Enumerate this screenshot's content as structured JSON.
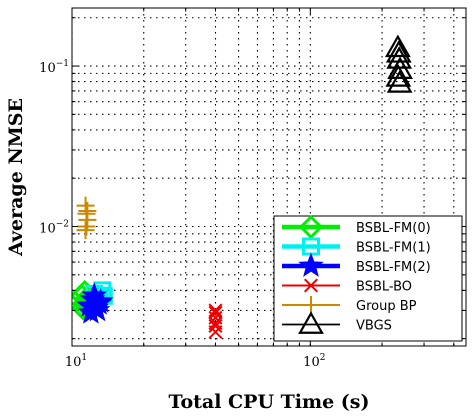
{
  "chart_data": {
    "type": "scatter",
    "title": "",
    "xlabel": "Total CPU Time (s)",
    "ylabel": "Average NMSE",
    "x_scale": "log",
    "y_scale": "log",
    "xlim": [
      10,
      450
    ],
    "ylim": [
      0.0018,
      0.23
    ],
    "grid": true,
    "legend_position": "lower-right",
    "x_ticks": [
      {
        "value": 10,
        "base": "10",
        "exp": "1"
      },
      {
        "value": 100,
        "base": "10",
        "exp": "2"
      }
    ],
    "y_ticks": [
      {
        "value": 0.01,
        "base": "10",
        "exp": "−2"
      },
      {
        "value": 0.1,
        "base": "10",
        "exp": "−1"
      }
    ],
    "series": [
      {
        "name": "BSBL-FM(0)",
        "color": "#00ee00",
        "marker": "diamond",
        "x": [
          11.0,
          11.2,
          11.4,
          11.6,
          11.1,
          11.3,
          11.5,
          11.8
        ],
        "y": [
          0.0037,
          0.0033,
          0.003,
          0.0036,
          0.0031,
          0.0039,
          0.0034,
          0.0032
        ]
      },
      {
        "name": "BSBL-FM(1)",
        "color": "#00f0f0",
        "marker": "square",
        "x": [
          12.4,
          13.0,
          13.4,
          12.8,
          13.6,
          12.6
        ],
        "y": [
          0.0038,
          0.0036,
          0.004,
          0.0034,
          0.0037,
          0.0035
        ]
      },
      {
        "name": "BSBL-FM(2)",
        "color": "#0000ff",
        "marker": "star",
        "x": [
          11.8,
          12.2,
          12.6,
          13.0,
          12.4,
          12.0,
          12.8,
          13.2
        ],
        "y": [
          0.0032,
          0.0035,
          0.0031,
          0.0033,
          0.0037,
          0.0029,
          0.003,
          0.0034
        ]
      },
      {
        "name": "BSBL-BO",
        "color": "#ee0000",
        "marker": "x",
        "x": [
          40.0,
          40.0,
          40.0,
          40.0,
          40.0,
          40.0
        ],
        "y": [
          0.003,
          0.0027,
          0.0025,
          0.0024,
          0.0022,
          0.0029
        ]
      },
      {
        "name": "Group BP",
        "color": "#cc8800",
        "marker": "plus",
        "x": [
          11.4,
          11.5,
          11.6,
          11.5,
          11.4,
          11.6
        ],
        "y": [
          0.0135,
          0.012,
          0.011,
          0.01,
          0.0095,
          0.0125
        ]
      },
      {
        "name": "VBGS",
        "color": "#000000",
        "marker": "triangle",
        "x": [
          233,
          236,
          238,
          234,
          237,
          235
        ],
        "y": [
          0.13,
          0.11,
          0.095,
          0.085,
          0.078,
          0.12
        ]
      }
    ]
  }
}
